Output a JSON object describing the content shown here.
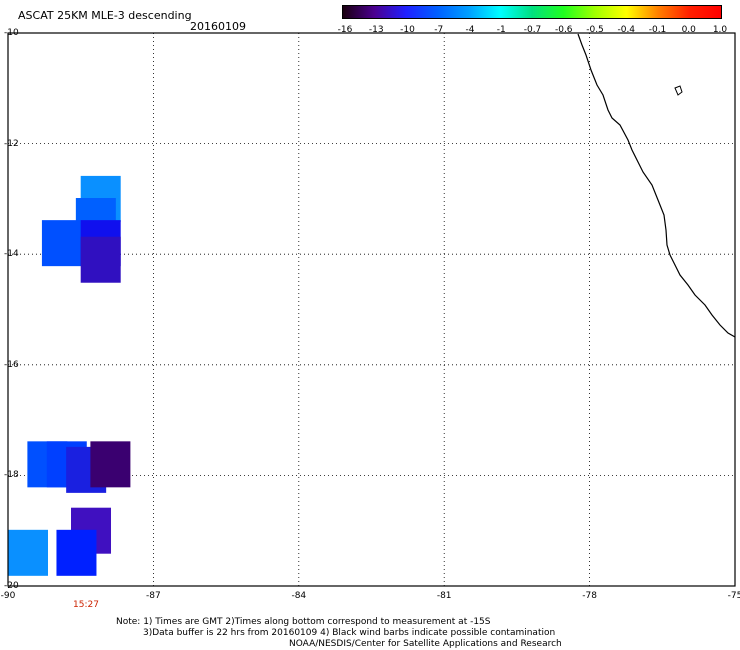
{
  "header": {
    "title": "ASCAT 25KM MLE-3 descending",
    "date": "20160109"
  },
  "colorbar": {
    "labels": [
      "-16",
      "-13",
      "-10",
      "-7",
      "-4",
      "-1",
      "-0.7",
      "-0.6",
      "-0.5",
      "-0.4",
      "-0.1",
      "0.0",
      "1.0"
    ],
    "colors": [
      "#1a0010",
      "#4b0090",
      "#2020ff",
      "#0060ff",
      "#00a0ff",
      "#00ffff",
      "#00e080",
      "#20ff20",
      "#a0ff00",
      "#ffff00",
      "#ff8000",
      "#ff2000",
      "#ff0000"
    ]
  },
  "axes": {
    "y_labels": [
      "-10",
      "-12",
      "-14",
      "-16",
      "-18",
      "-20"
    ],
    "x_labels": [
      "-90",
      "-87",
      "-84",
      "-81",
      "-78",
      "-75"
    ]
  },
  "time_label": "15:27",
  "notes": {
    "line1": "Note: 1) Times are GMT 2)Times along bottom correspond to measurement at -15S",
    "line2": "3)Data buffer is 22 hrs from 20160109 4) Black wind barbs indicate possible contamination",
    "line3": "NOAA/NESDIS/Center for Satellite Applications and Research"
  },
  "cells": [
    {
      "lon": -88.5,
      "lat": -13.0,
      "color": "#0a90ff"
    },
    {
      "lon": -88.6,
      "lat": -13.4,
      "color": "#0060ff"
    },
    {
      "lon": -89.3,
      "lat": -13.8,
      "color": "#0050ff"
    },
    {
      "lon": -88.5,
      "lat": -13.8,
      "color": "#1010ee"
    },
    {
      "lon": -88.5,
      "lat": -14.1,
      "color": "#3010c0"
    },
    {
      "lon": -89.6,
      "lat": -17.8,
      "color": "#0050ff"
    },
    {
      "lon": -89.2,
      "lat": -17.8,
      "color": "#0040ff"
    },
    {
      "lon": -88.8,
      "lat": -17.9,
      "color": "#1a20e0"
    },
    {
      "lon": -88.3,
      "lat": -17.8,
      "color": "#3a0070"
    },
    {
      "lon": -88.7,
      "lat": -19.0,
      "color": "#4010c0"
    },
    {
      "lon": -89.0,
      "lat": -19.4,
      "color": "#0020ff"
    },
    {
      "lon": -90.0,
      "lat": -19.4,
      "color": "#0a90ff"
    }
  ]
}
